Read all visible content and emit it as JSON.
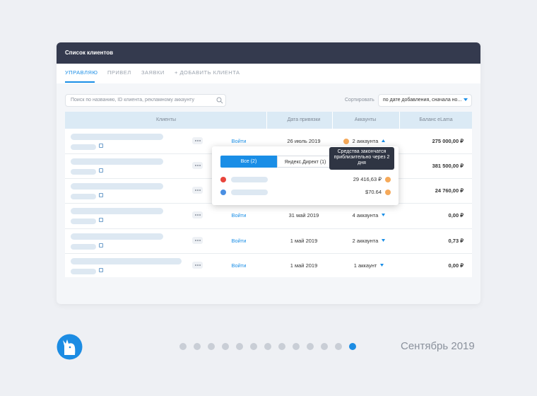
{
  "header": {
    "title": "Список клиентов"
  },
  "tabs": [
    "УПРАВЛЯЮ",
    "ПРИВЕЛ",
    "ЗАЯВКИ",
    "+ ДОБАВИТЬ КЛИЕНТА"
  ],
  "search": {
    "placeholder": "Поиск по названию, ID клиента, рекламному аккаунту"
  },
  "sort": {
    "label": "Сортировать",
    "value": "по дате добавления, сначала но..."
  },
  "table": {
    "columns": [
      "Клиенты",
      "Дата привязки",
      "Аккаунты",
      "Баланс eLama"
    ],
    "rows": [
      {
        "action": "Войти",
        "date": "26 июль 2019",
        "accounts": "2 аккаунта",
        "balance": "275 000,00 ₽"
      },
      {
        "balance": "381 500,00 ₽"
      },
      {
        "balance": "24 760,00 ₽"
      },
      {
        "action": "Войти",
        "date": "31 май 2019",
        "accounts": "4 аккаунта",
        "balance": "0,00 ₽"
      },
      {
        "action": "Войти",
        "date": "1 май 2019",
        "accounts": "2 аккаунта",
        "balance": "0,73 ₽"
      },
      {
        "action": "Войти",
        "date": "1 май 2019",
        "accounts": "1 аккаунт",
        "balance": "0,00 ₽"
      }
    ]
  },
  "popup": {
    "tabs": [
      "Все (2)",
      "Яндекс.Директ (1)"
    ],
    "accounts": [
      {
        "amount": "29 416,63 ₽"
      },
      {
        "amount": "$70.64"
      }
    ],
    "tooltip": "Средства закончатся приблизительно через 2 дня"
  },
  "footer": {
    "date": "Сентябрь 2019"
  }
}
